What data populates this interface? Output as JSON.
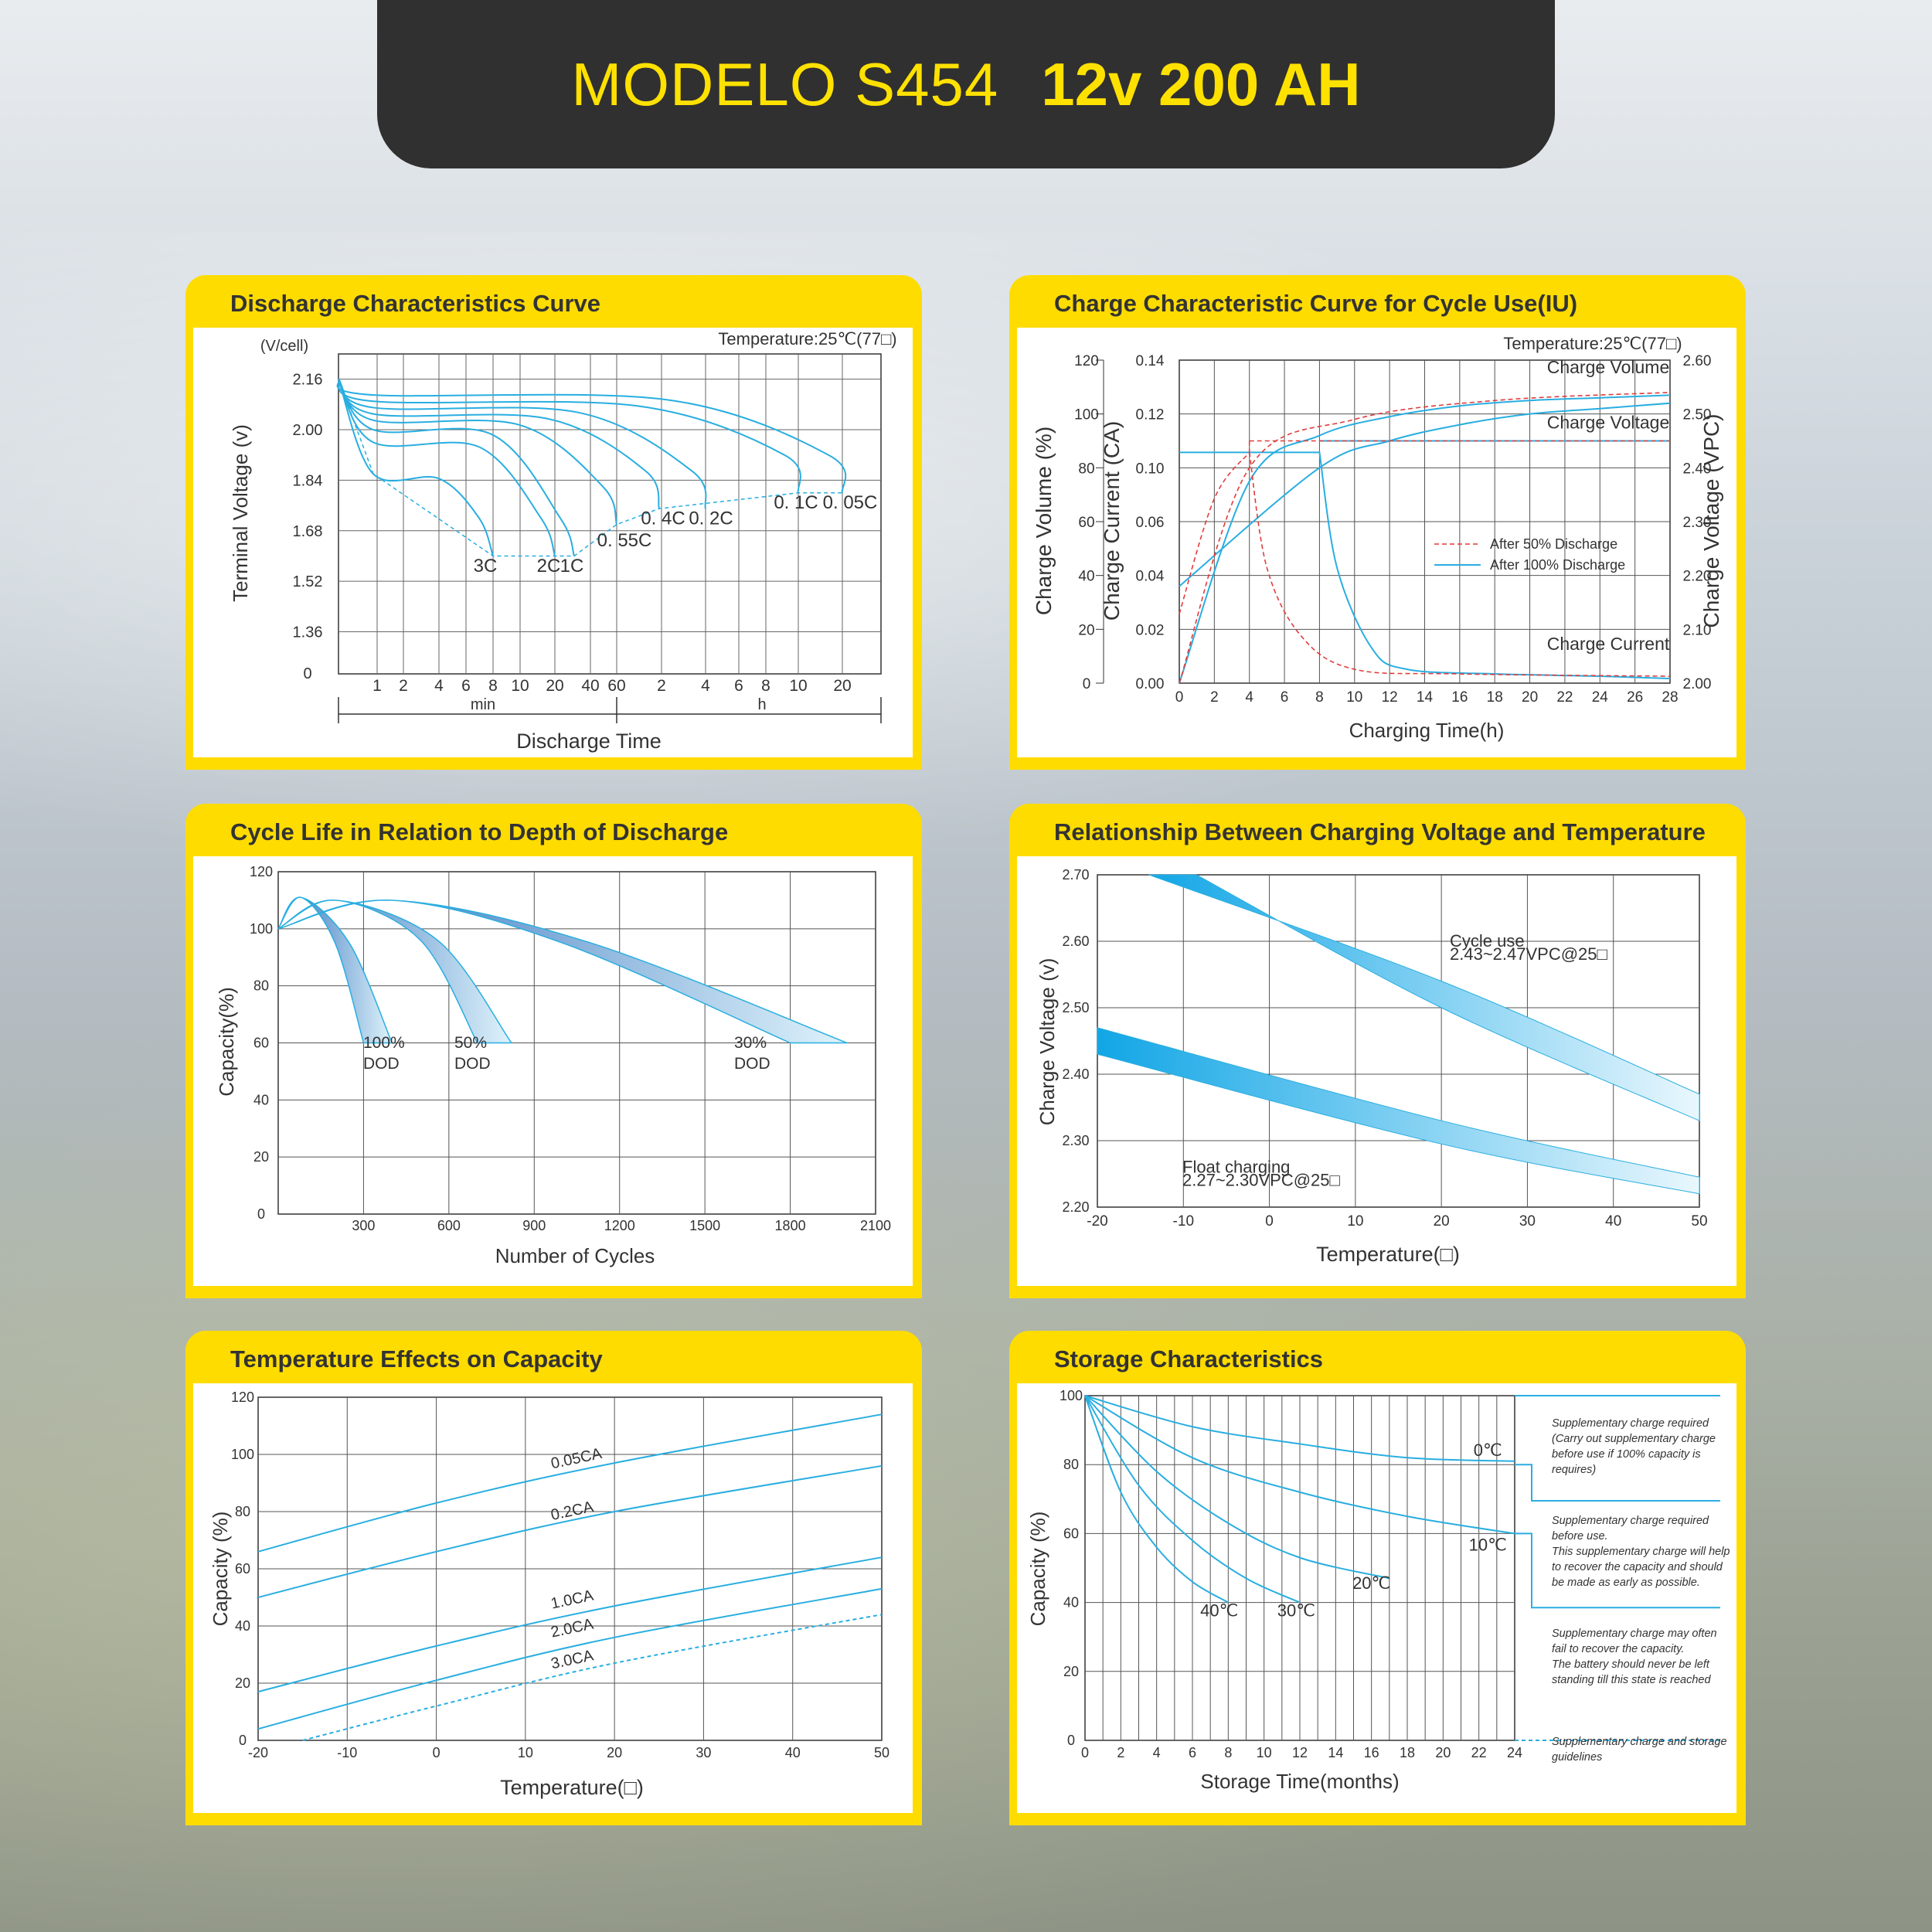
{
  "header": {
    "model": "MODELO S454",
    "spec": "12v 200 AH"
  },
  "colors": {
    "header_bg": "#303030",
    "accent": "#ffdc00",
    "title_text": "#ffe100",
    "curve": "#29aee0",
    "red_dashed": "#e03c3c"
  },
  "panels": {
    "discharge": {
      "title": "Discharge Characteristics Curve",
      "temperature": "Temperature:25℃(77□)",
      "unit_label": "(V/cell)",
      "ylabel": "Terminal  Voltage   (v)",
      "xlabel": "Discharge  Time",
      "min_label": "min",
      "h_label": "h",
      "yticks": [
        "2.16",
        "2.00",
        "1.84",
        "1.68",
        "1.52",
        "1.36",
        "0"
      ],
      "xticks": [
        "1",
        "2",
        "4",
        "6",
        "8",
        "10",
        "20",
        "40",
        "60",
        "2",
        "4",
        "6",
        "8",
        "10",
        "20"
      ],
      "curve_labels": [
        "3C",
        "2C",
        "1C",
        "0. 55C",
        "0. 4C",
        "0. 2C",
        "0. 1C",
        "0. 05C"
      ]
    },
    "charge": {
      "title": "Charge Characteristic Curve for Cycle Use(IU)",
      "temperature": "Temperature:25℃(77□)",
      "ylabel_volume": "Charge  Volume  (%)",
      "ylabel_current": "Charge  Current (CA)",
      "ylabel_voltage": "Charge Voltage (VPC)",
      "xlabel": "Charging Time(h)",
      "volume_ticks": [
        "120",
        "100",
        "80",
        "60",
        "40",
        "20",
        "0"
      ],
      "current_ticks": [
        "0.14",
        "0.12",
        "0.10",
        "0.06",
        "0.04",
        "0.02",
        "0.00"
      ],
      "voltage_ticks": [
        "2.60",
        "2.50",
        "2.40",
        "2.30",
        "2.20",
        "2.10",
        "2.00"
      ],
      "xticks": [
        "0",
        "2",
        "4",
        "6",
        "8",
        "10",
        "12",
        "14",
        "16",
        "18",
        "20",
        "22",
        "24",
        "26",
        "28"
      ],
      "series_labels": [
        "Charge Volume",
        "Charge Voltage",
        "Charge Current"
      ],
      "legend": [
        "After 50% Discharge",
        "After 100% Discharge"
      ]
    },
    "cycle": {
      "title": "Cycle Life in Relation to Depth of Discharge",
      "ylabel": "Capacity(%)",
      "xlabel": "Number of Cycles",
      "yticks": [
        "120",
        "100",
        "80",
        "60",
        "40",
        "20",
        "0"
      ],
      "xticks": [
        "300",
        "600",
        "900",
        "1200",
        "1500",
        "1800",
        "2100"
      ],
      "labels": [
        {
          "pct": "100%",
          "dod": "DOD"
        },
        {
          "pct": "50%",
          "dod": "DOD"
        },
        {
          "pct": "30%",
          "dod": "DOD"
        }
      ]
    },
    "voltage_temp": {
      "title": "Relationship Between Charging Voltage and Temperature",
      "ylabel": "Charge Voltage  (v)",
      "xlabel": "Temperature(□)",
      "yticks": [
        "2.70",
        "2.60",
        "2.50",
        "2.40",
        "2.30",
        "2.20"
      ],
      "xticks": [
        "-20",
        "-10",
        "0",
        "10",
        "20",
        "30",
        "40",
        "50"
      ],
      "cycle_label": "Cycle use",
      "cycle_range": "2.43~2.47VPC@25□",
      "float_label": "Float charging",
      "float_range": "2.27~2.30VPC@25□"
    },
    "temp_cap": {
      "title": "Temperature Effects on Capacity",
      "ylabel": "Capacity  (%)",
      "xlabel": "Temperature(□)",
      "yticks": [
        "120",
        "100",
        "80",
        "60",
        "40",
        "20",
        "0"
      ],
      "xticks": [
        "-20",
        "-10",
        "0",
        "10",
        "20",
        "30",
        "40",
        "50"
      ],
      "curve_labels": [
        "0.05CA",
        "0.2CA",
        "1.0CA",
        "2.0CA",
        "3.0CA"
      ]
    },
    "storage": {
      "title": "Storage Characteristics",
      "ylabel": "Capacity   (%)",
      "xlabel": "Storage  Time(months)",
      "yticks": [
        "100",
        "80",
        "60",
        "40",
        "20",
        "0"
      ],
      "xticks": [
        "0",
        "2",
        "4",
        "6",
        "8",
        "10",
        "12",
        "14",
        "16",
        "18",
        "20",
        "22",
        "24"
      ],
      "curve_labels": [
        "0℃",
        "10℃",
        "20℃",
        "30℃",
        "40℃"
      ],
      "notes": [
        [
          "Supplementary charge required",
          "(Carry out supplementary charge",
          "before use if 100% capacity is",
          "requires)"
        ],
        [
          "Supplementary charge required",
          "before use.",
          "This supplementary charge will help",
          "to recover the capacity and should",
          "be made  as early as possible."
        ],
        [
          "Supplementary charge may often",
          "fail to recover the capacity.",
          "The battery should never be left",
          "standing till this state is reached"
        ],
        [
          "Supplementary charge and storage",
          "guidelines"
        ]
      ]
    }
  },
  "chart_data": [
    {
      "type": "line",
      "title": "Discharge Characteristics Curve",
      "xlabel": "Discharge  Time",
      "ylabel": "Terminal  Voltage   (v)",
      "ylim": [
        1.36,
        2.16
      ],
      "series": [
        {
          "name": "3C",
          "x_min": [
            0,
            1,
            2,
            4,
            6,
            8
          ],
          "y": [
            2.16,
            1.95,
            1.87,
            1.82,
            1.72,
            1.6
          ]
        },
        {
          "name": "2C",
          "x_min": [
            0,
            1,
            4,
            10,
            20
          ],
          "y": [
            2.16,
            2.04,
            1.97,
            1.87,
            1.6
          ]
        },
        {
          "name": "1C",
          "x_min": [
            0,
            1,
            10,
            20,
            40
          ],
          "y": [
            2.16,
            2.07,
            2.0,
            1.9,
            1.6
          ]
        },
        {
          "name": "0. 55C",
          "x_min": [
            0,
            1,
            20,
            60,
            120
          ],
          "y": [
            2.16,
            2.08,
            2.03,
            1.96,
            1.7
          ]
        },
        {
          "name": "0. 4C",
          "x_min": [
            0,
            1,
            20,
            60,
            180
          ],
          "y": [
            2.16,
            2.1,
            2.05,
            2.0,
            1.75
          ]
        },
        {
          "name": "0. 2C",
          "x_min": [
            0,
            1,
            60,
            240,
            300
          ],
          "y": [
            2.16,
            2.11,
            2.06,
            1.98,
            1.75
          ]
        },
        {
          "name": "0. 1C",
          "x_min": [
            0,
            1,
            120,
            480,
            600
          ],
          "y": [
            2.16,
            2.12,
            2.07,
            1.98,
            1.8
          ]
        },
        {
          "name": "0. 05C",
          "x_min": [
            0,
            1,
            240,
            1080,
            1200
          ],
          "y": [
            2.16,
            2.13,
            2.08,
            1.98,
            1.8
          ]
        }
      ]
    },
    {
      "type": "line",
      "title": "Charge Characteristic Curve for Cycle Use(IU)",
      "xlabel": "Charging Time(h)",
      "xlim": [
        0,
        28
      ],
      "series": [
        {
          "name": "Charge Volume",
          "x": [
            0,
            4,
            8,
            12,
            16,
            20,
            24,
            28
          ],
          "y": [
            0,
            75,
            92,
            99,
            103,
            105,
            106,
            107
          ]
        },
        {
          "name": "Charge Voltage",
          "x": [
            0,
            8,
            12,
            16,
            20,
            24,
            28
          ],
          "y": [
            2.18,
            2.4,
            2.45,
            2.48,
            2.5,
            2.51,
            2.52
          ]
        },
        {
          "name": "Charge Current",
          "x": [
            0,
            8,
            9,
            11,
            13,
            18,
            24,
            28
          ],
          "y": [
            0.1,
            0.1,
            0.05,
            0.015,
            0.006,
            0.004,
            0.003,
            0.002
          ]
        }
      ]
    },
    {
      "type": "line",
      "title": "Cycle Life in Relation to Depth of Discharge",
      "xlabel": "Number of Cycles",
      "ylabel": "Capacity(%)",
      "xlim": [
        0,
        2100
      ],
      "ylim": [
        0,
        120
      ],
      "series": [
        {
          "name": "100% DOD",
          "x": [
            0,
            80,
            200,
            300
          ],
          "y": [
            100,
            111,
            95,
            60
          ]
        },
        {
          "name": "50% DOD",
          "x": [
            0,
            200,
            500,
            700
          ],
          "y": [
            100,
            110,
            96,
            60
          ]
        },
        {
          "name": "30% DOD",
          "x": [
            0,
            400,
            1000,
            1800
          ],
          "y": [
            100,
            110,
            95,
            60
          ]
        }
      ]
    },
    {
      "type": "area",
      "title": "Relationship Between Charging Voltage and Temperature",
      "xlabel": "Temperature(□)",
      "ylabel": "Charge Voltage  (v)",
      "xlim": [
        -20,
        50
      ],
      "ylim": [
        2.2,
        2.7
      ],
      "series": [
        {
          "name": "Cycle use",
          "x": [
            -15,
            20,
            50
          ],
          "y_upper": [
            2.7,
            2.54,
            2.37
          ],
          "y_lower": [
            2.7,
            2.5,
            2.33
          ]
        },
        {
          "name": "Float charging",
          "x": [
            -20,
            20,
            50
          ],
          "y_upper": [
            2.47,
            2.33,
            2.25
          ],
          "y_lower": [
            2.43,
            2.3,
            2.22
          ]
        }
      ]
    },
    {
      "type": "line",
      "title": "Temperature Effects on Capacity",
      "xlabel": "Temperature(□)",
      "ylabel": "Capacity  (%)",
      "xlim": [
        -20,
        50
      ],
      "ylim": [
        0,
        120
      ],
      "series": [
        {
          "name": "0.05CA",
          "x": [
            -20,
            0,
            20,
            50
          ],
          "y": [
            66,
            83,
            97,
            114
          ]
        },
        {
          "name": "0.2CA",
          "x": [
            -20,
            0,
            20,
            50
          ],
          "y": [
            50,
            66,
            80,
            96
          ]
        },
        {
          "name": "1.0CA",
          "x": [
            -20,
            0,
            20,
            50
          ],
          "y": [
            17,
            33,
            47,
            64
          ]
        },
        {
          "name": "2.0CA",
          "x": [
            -20,
            0,
            20,
            50
          ],
          "y": [
            4,
            21,
            36,
            53
          ]
        },
        {
          "name": "3.0CA",
          "x": [
            -15,
            0,
            20,
            50
          ],
          "y": [
            0,
            12,
            27,
            44
          ]
        }
      ]
    },
    {
      "type": "line",
      "title": "Storage Characteristics",
      "xlabel": "Storage  Time(months)",
      "ylabel": "Capacity   (%)",
      "xlim": [
        0,
        24
      ],
      "ylim": [
        0,
        100
      ],
      "series": [
        {
          "name": "0℃",
          "x": [
            0,
            6,
            12,
            18,
            24
          ],
          "y": [
            100,
            91,
            86,
            82,
            81
          ]
        },
        {
          "name": "10℃",
          "x": [
            0,
            6,
            12,
            18,
            24
          ],
          "y": [
            100,
            82,
            72,
            65,
            60
          ]
        },
        {
          "name": "20℃",
          "x": [
            0,
            4,
            8,
            12,
            17
          ],
          "y": [
            100,
            78,
            63,
            53,
            47
          ]
        },
        {
          "name": "30℃",
          "x": [
            0,
            3,
            6,
            9,
            12
          ],
          "y": [
            100,
            74,
            58,
            47,
            40
          ]
        },
        {
          "name": "40℃",
          "x": [
            0,
            2,
            4,
            6,
            8
          ],
          "y": [
            100,
            72,
            56,
            46,
            40
          ]
        }
      ]
    }
  ]
}
